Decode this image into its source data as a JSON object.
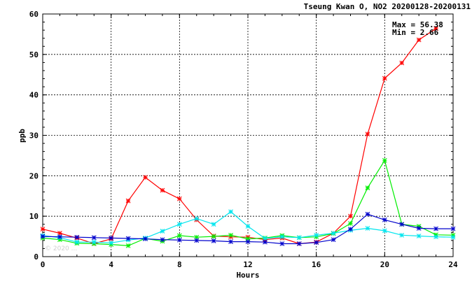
{
  "chart_data": {
    "type": "line",
    "title": "Tseung Kwan O, NO2 20200128-20200131",
    "xlabel": "Hours",
    "ylabel": "ppb",
    "xlim": [
      0,
      24
    ],
    "ylim": [
      0,
      60
    ],
    "xticks": [
      0,
      4,
      8,
      12,
      16,
      20,
      24
    ],
    "yticks": [
      0,
      10,
      20,
      30,
      40,
      50,
      60
    ],
    "grid": true,
    "stats": {
      "max_label": "Max = 56.38",
      "min_label": "Min =  2.66"
    },
    "watermark": "© 2020 ...",
    "series": [
      {
        "color": "#ff0000",
        "x": [
          0,
          1,
          2,
          3,
          4,
          5,
          6,
          7,
          8,
          9,
          10,
          11,
          12,
          13,
          14,
          15,
          16,
          17,
          18,
          19,
          20,
          21,
          22,
          23
        ],
        "values": [
          6.8,
          5.8,
          4.6,
          3.2,
          4.4,
          13.8,
          19.6,
          16.4,
          14.3,
          9.1,
          5.1,
          4.9,
          4.8,
          4.2,
          4.6,
          3.2,
          3.6,
          5.8,
          10.0,
          30.3,
          44.1,
          47.9,
          53.6,
          56.4
        ]
      },
      {
        "color": "#00ee00",
        "x": [
          0,
          1,
          2,
          3,
          4,
          5,
          6,
          7,
          8,
          9,
          10,
          11,
          12,
          13,
          14,
          15,
          16,
          17,
          18,
          19,
          20,
          21,
          22,
          23,
          24
        ],
        "values": [
          4.6,
          4.2,
          3.3,
          3.2,
          3.0,
          2.7,
          4.5,
          3.8,
          5.2,
          4.8,
          5.0,
          5.3,
          4.4,
          4.6,
          5.2,
          4.7,
          4.9,
          5.7,
          8.2,
          17.0,
          23.8,
          8.0,
          7.5,
          5.4,
          5.3
        ]
      },
      {
        "color": "#00e5ee",
        "x": [
          0,
          1,
          2,
          3,
          4,
          5,
          6,
          7,
          8,
          9,
          10,
          11,
          12,
          13,
          14,
          15,
          16,
          17,
          18,
          19,
          20,
          21,
          22,
          23,
          24
        ],
        "values": [
          5.2,
          4.7,
          3.6,
          3.6,
          3.4,
          4.1,
          4.6,
          6.3,
          8.0,
          9.4,
          8.0,
          11.1,
          7.5,
          4.5,
          4.9,
          4.7,
          5.3,
          5.8,
          6.5,
          7.0,
          6.4,
          5.3,
          5.1,
          4.9,
          4.8
        ]
      },
      {
        "color": "#0000cc",
        "x": [
          0,
          1,
          2,
          3,
          4,
          5,
          6,
          7,
          8,
          9,
          10,
          11,
          12,
          13,
          14,
          15,
          16,
          17,
          18,
          19,
          20,
          21,
          22,
          23,
          24
        ],
        "values": [
          5.0,
          4.9,
          4.8,
          4.7,
          4.6,
          4.5,
          4.4,
          4.2,
          4.1,
          4.0,
          3.9,
          3.7,
          3.7,
          3.6,
          3.2,
          3.2,
          3.5,
          4.2,
          6.8,
          10.5,
          9.1,
          8.0,
          7.0,
          6.9,
          6.9
        ]
      }
    ]
  }
}
